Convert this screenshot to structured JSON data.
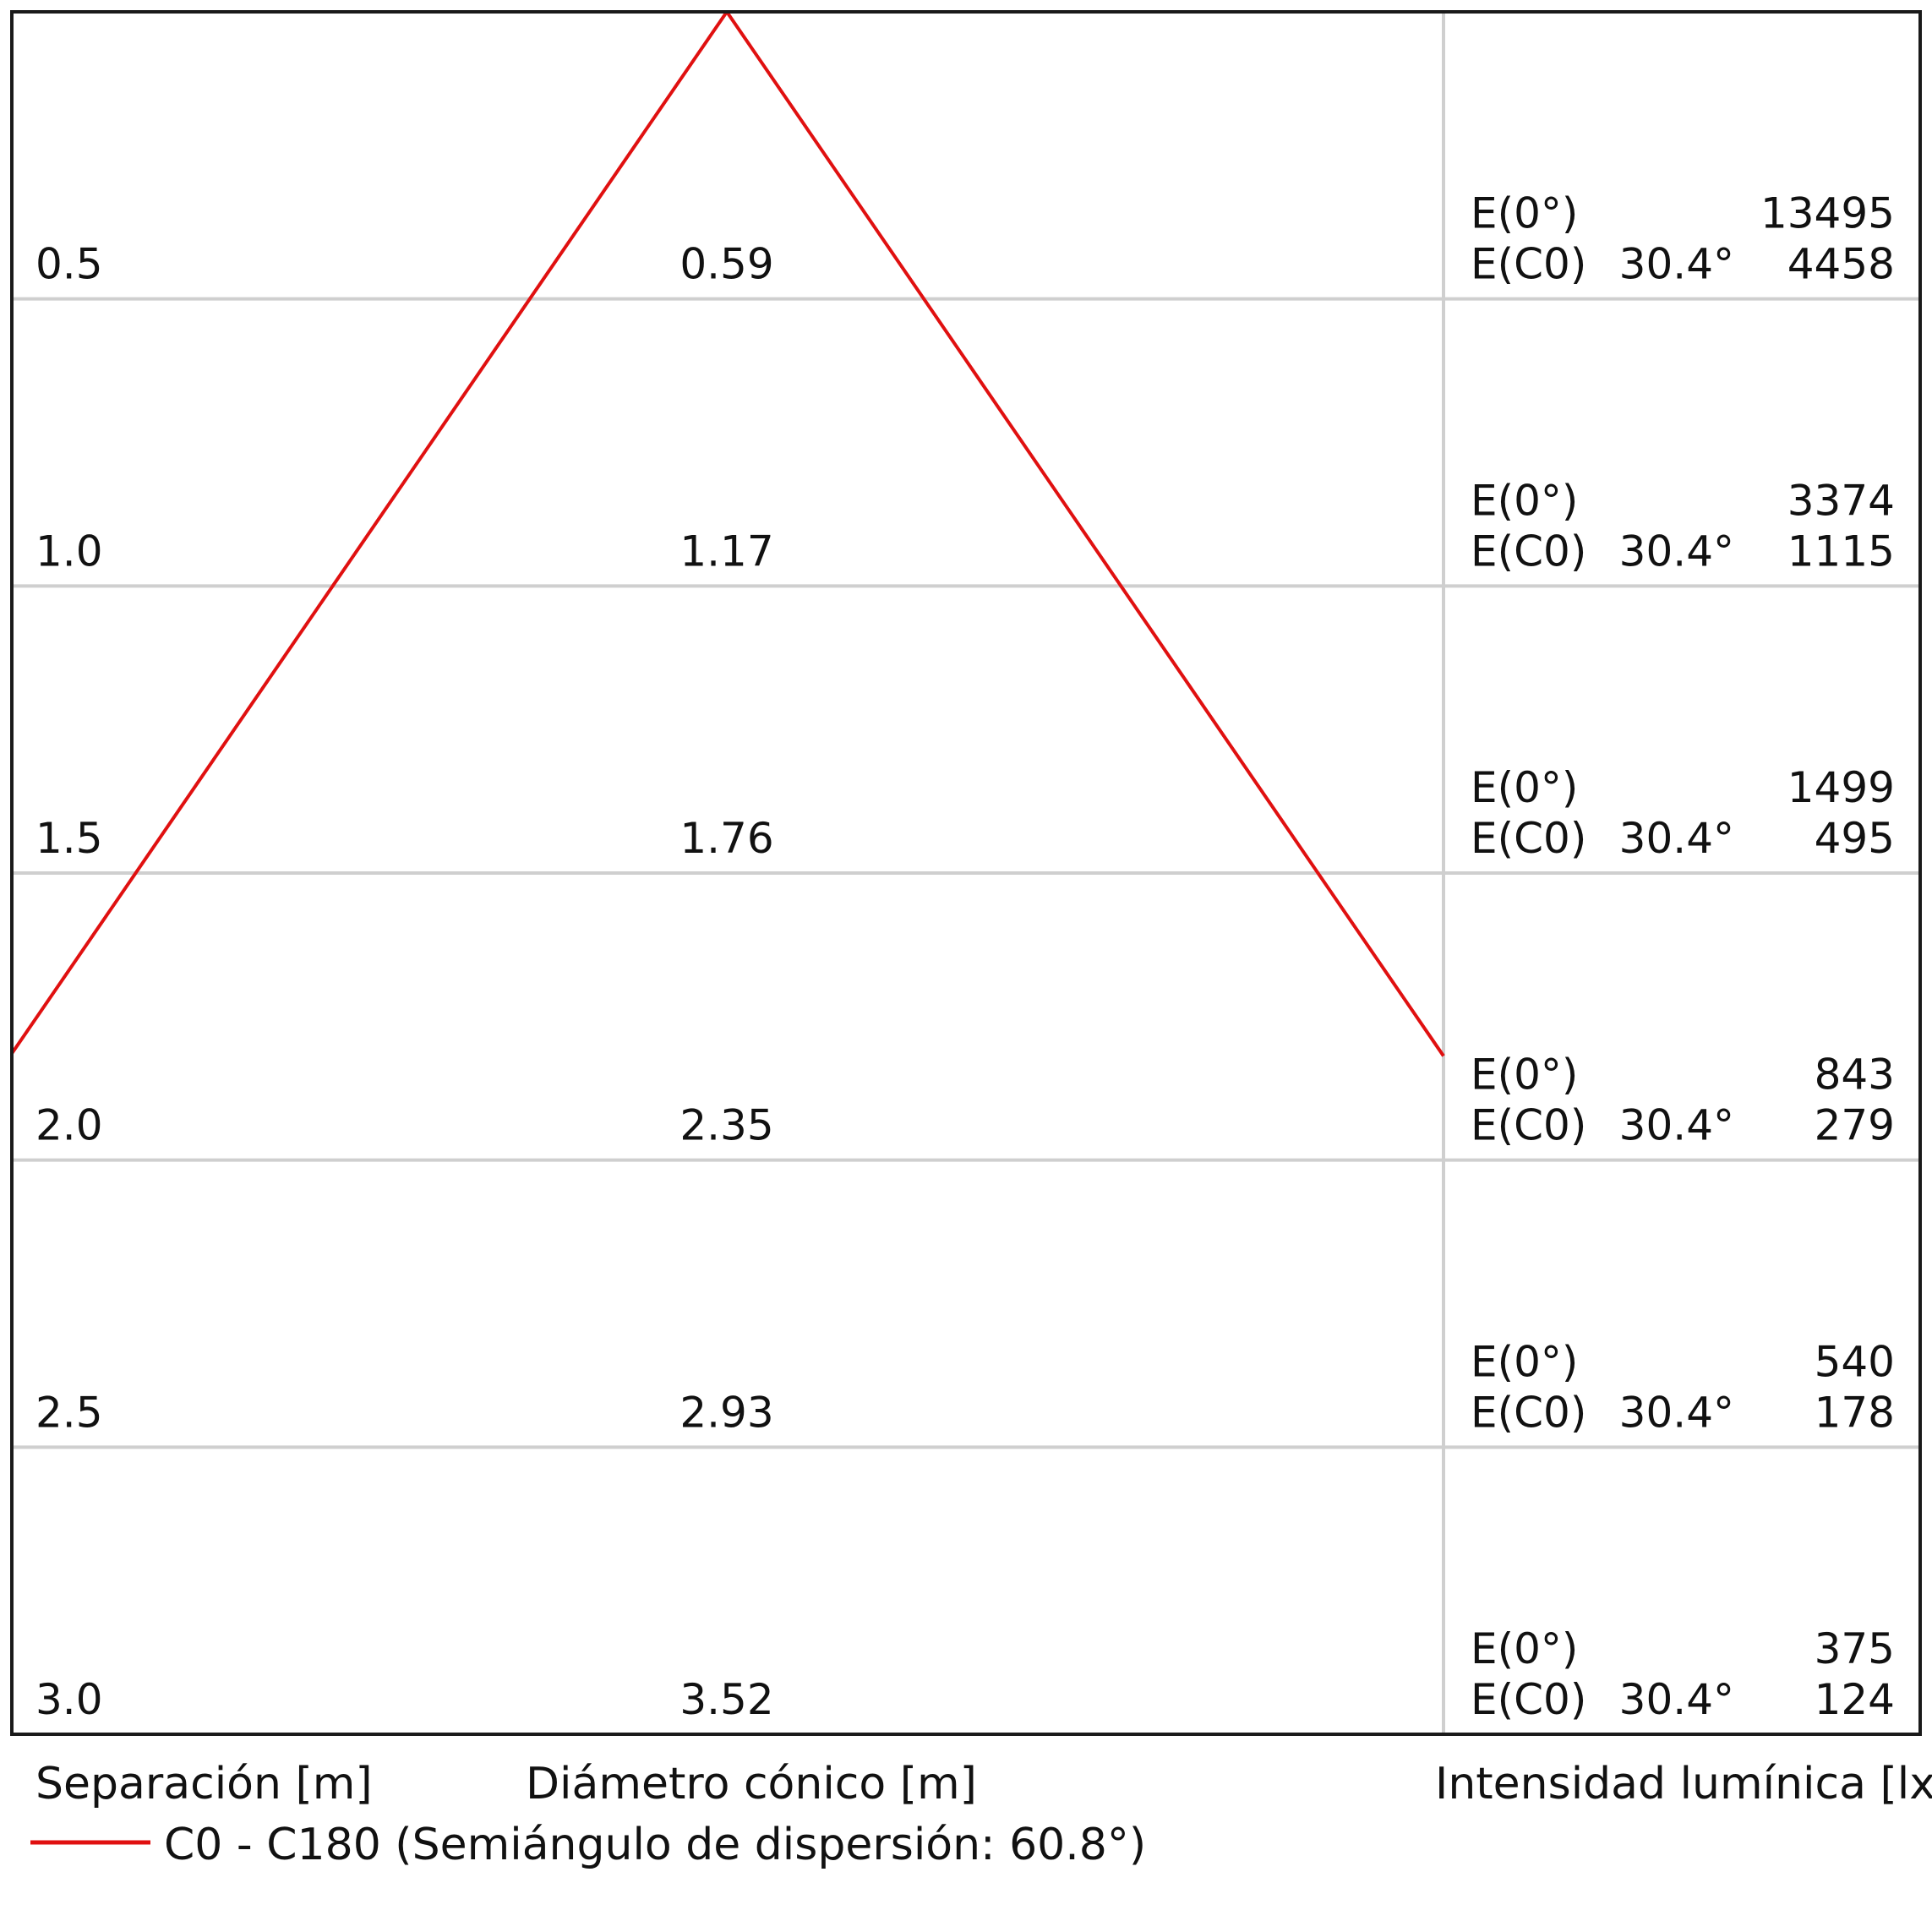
{
  "chart_data": {
    "type": "table",
    "rows": [
      {
        "distance": "0.5",
        "diameter": "0.59",
        "e0_label": "E(0°)",
        "e0_value": "13495",
        "ec0_label": "E(C0)",
        "ec0_angle": "30.4°",
        "ec0_value": "4458"
      },
      {
        "distance": "1.0",
        "diameter": "1.17",
        "e0_label": "E(0°)",
        "e0_value": "3374",
        "ec0_label": "E(C0)",
        "ec0_angle": "30.4°",
        "ec0_value": "1115"
      },
      {
        "distance": "1.5",
        "diameter": "1.76",
        "e0_label": "E(0°)",
        "e0_value": "1499",
        "ec0_label": "E(C0)",
        "ec0_angle": "30.4°",
        "ec0_value": "495"
      },
      {
        "distance": "2.0",
        "diameter": "2.35",
        "e0_label": "E(0°)",
        "e0_value": "843",
        "ec0_label": "E(C0)",
        "ec0_angle": "30.4°",
        "ec0_value": "279"
      },
      {
        "distance": "2.5",
        "diameter": "2.93",
        "e0_label": "E(0°)",
        "e0_value": "540",
        "ec0_label": "E(C0)",
        "ec0_angle": "30.4°",
        "ec0_value": "178"
      },
      {
        "distance": "3.0",
        "diameter": "3.52",
        "e0_label": "E(0°)",
        "e0_value": "375",
        "ec0_label": "E(C0)",
        "ec0_angle": "30.4°",
        "ec0_value": "124"
      }
    ],
    "max_distance": 3.0,
    "beam_half_angle_deg": 60.8,
    "column_headers": {
      "distance": "Separación [m]",
      "diameter": "Diámetro cónico [m]",
      "illuminance": "Intensidad lumínica [lx]"
    },
    "series": [
      {
        "name": "C0 - C180 (Semiángulo de dispersión: 60.8°)",
        "color": "#e01010"
      }
    ]
  }
}
